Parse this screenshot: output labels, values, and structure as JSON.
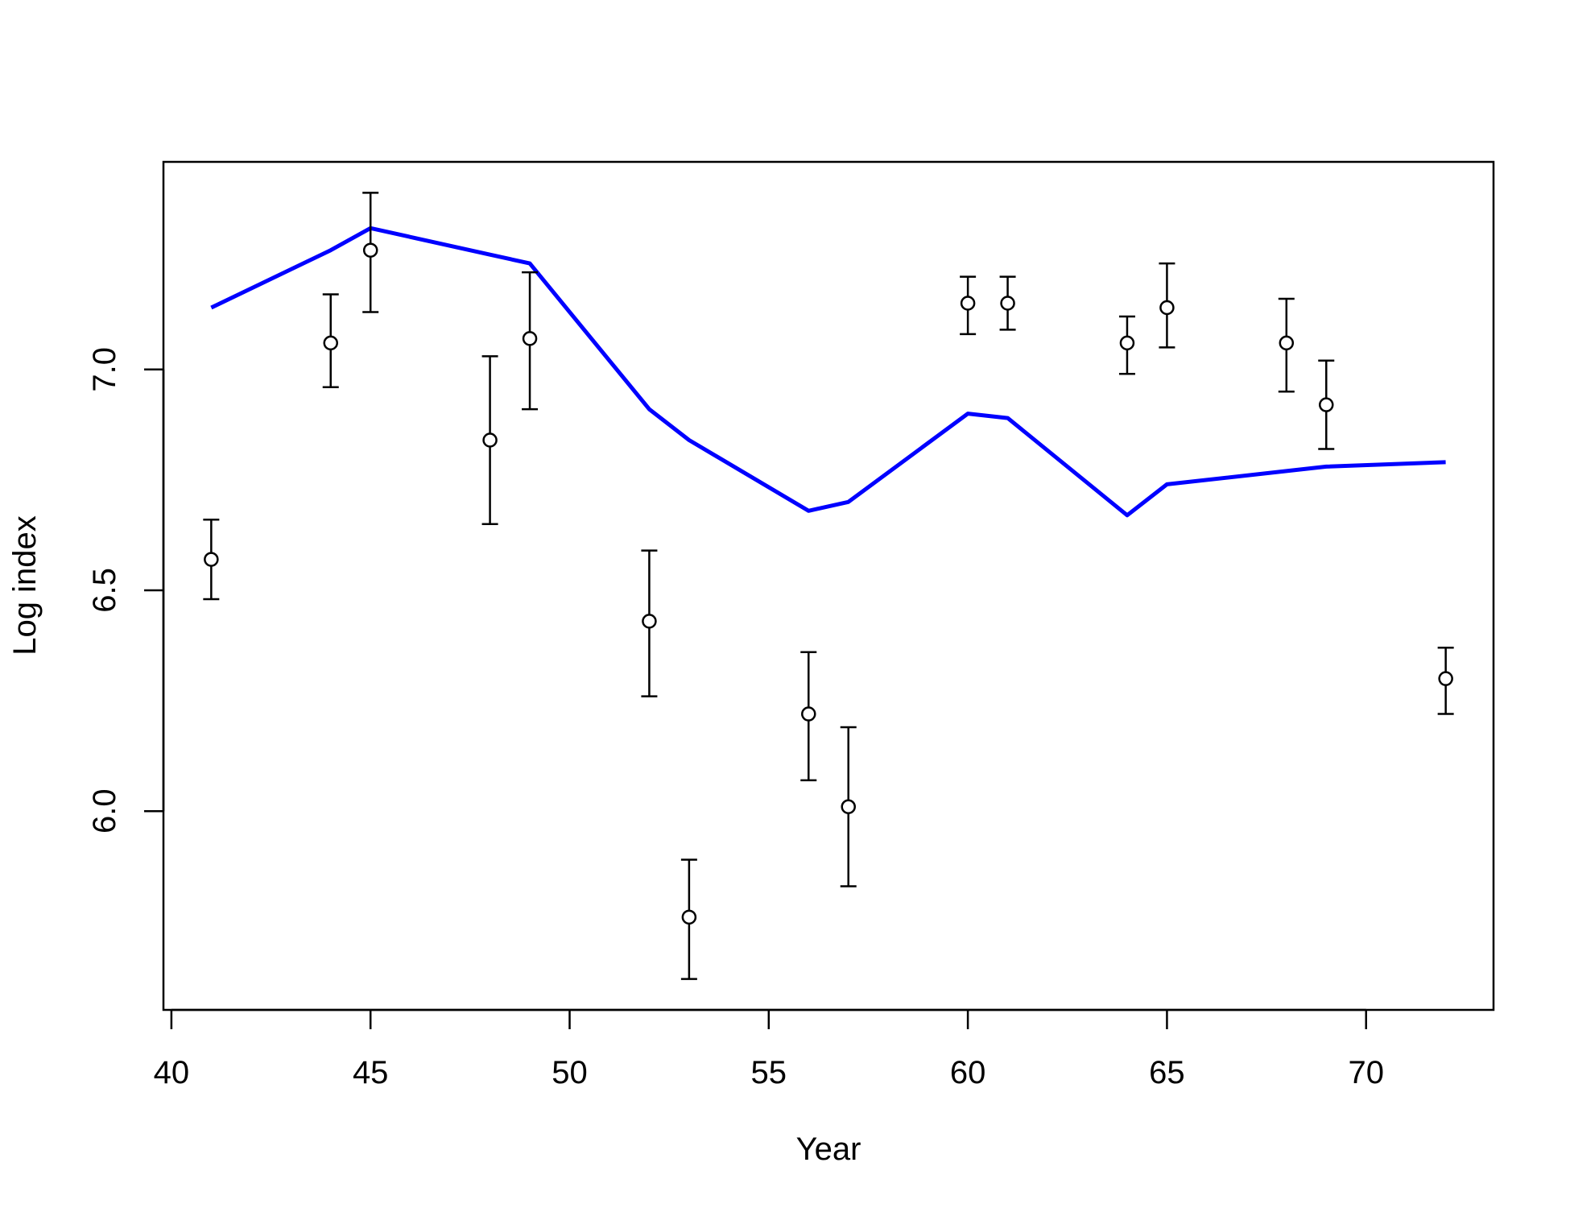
{
  "chart_data": {
    "type": "scatter",
    "title": "",
    "xlabel": "Year",
    "ylabel": "Log index",
    "xlim": [
      39.8,
      73.2
    ],
    "ylim": [
      5.55,
      7.47
    ],
    "xticks": [
      40,
      45,
      50,
      55,
      60,
      65,
      70
    ],
    "xtick_labels": [
      "40",
      "45",
      "50",
      "55",
      "60",
      "65",
      "70"
    ],
    "yticks": [
      6.0,
      6.5,
      7.0
    ],
    "ytick_labels": [
      "6.0",
      "6.5",
      "7.0"
    ],
    "grid": false,
    "series": [
      {
        "style": "points-with-error-bars",
        "color": "#000000",
        "x": [
          41,
          44,
          45,
          48,
          49,
          52,
          53,
          56,
          57,
          60,
          61,
          64,
          65,
          68,
          69,
          72
        ],
        "y": [
          6.57,
          7.06,
          7.27,
          6.84,
          7.07,
          6.43,
          5.76,
          6.22,
          6.01,
          7.15,
          7.15,
          7.06,
          7.14,
          7.06,
          6.92,
          6.3
        ],
        "lower": [
          6.48,
          6.96,
          7.13,
          6.65,
          6.91,
          6.26,
          5.62,
          6.07,
          5.83,
          7.08,
          7.09,
          6.99,
          7.05,
          6.95,
          6.82,
          6.22
        ],
        "upper": [
          6.66,
          7.17,
          7.4,
          7.03,
          7.22,
          6.59,
          5.89,
          6.36,
          6.19,
          7.21,
          7.21,
          7.12,
          7.24,
          7.16,
          7.02,
          6.37
        ]
      },
      {
        "style": "line",
        "color": "#0000ff",
        "x": [
          41,
          44,
          45,
          48,
          49,
          52,
          53,
          56,
          57,
          60,
          61,
          64,
          65,
          68,
          69,
          72
        ],
        "y": [
          7.14,
          7.27,
          7.32,
          7.26,
          7.24,
          6.91,
          6.84,
          6.68,
          6.7,
          6.9,
          6.89,
          6.67,
          6.74,
          6.77,
          6.78,
          6.79
        ]
      }
    ]
  }
}
